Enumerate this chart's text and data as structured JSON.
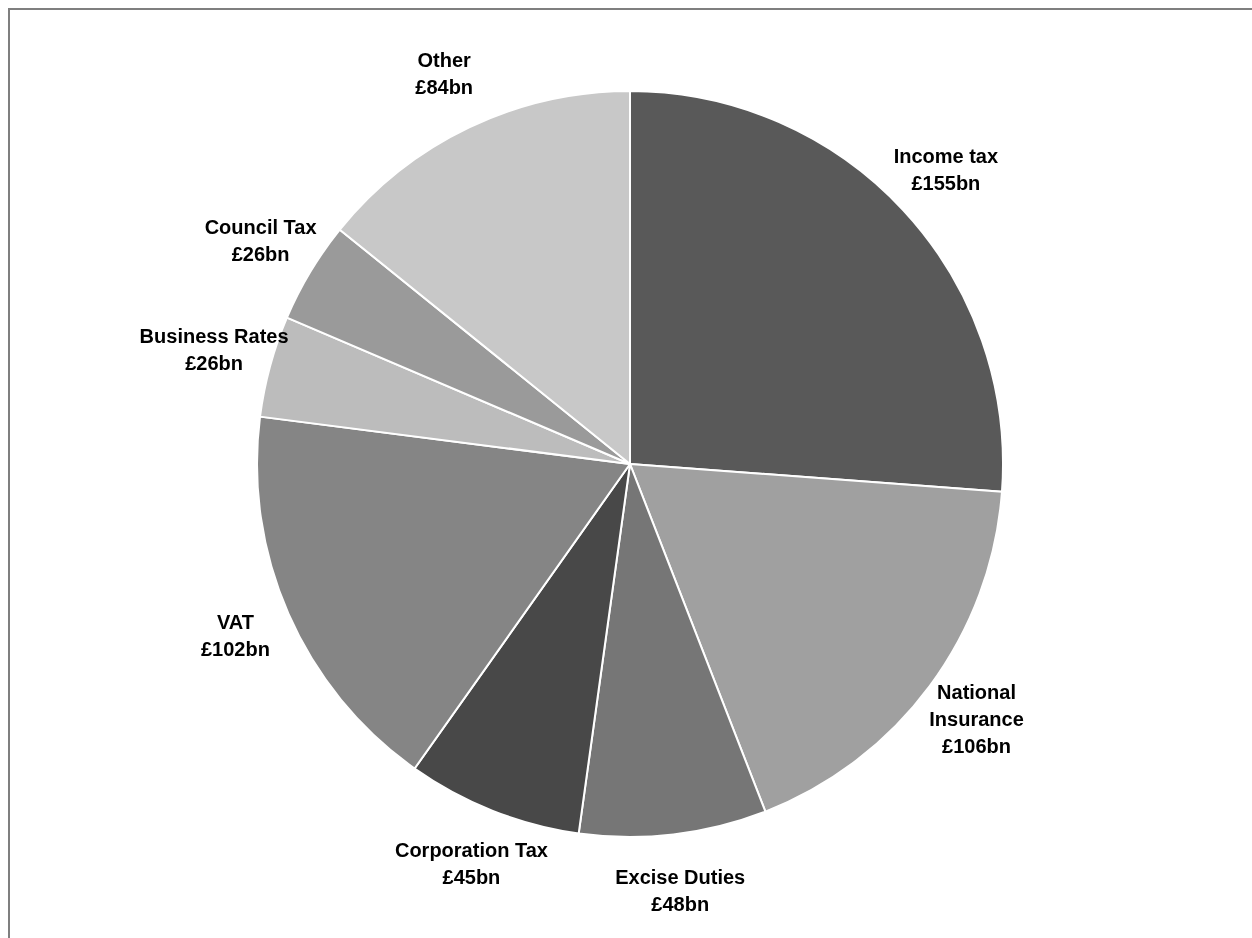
{
  "chart_data": {
    "type": "pie",
    "categories": [
      "Income tax",
      "National Insurance",
      "Excise Duties",
      "Corporation Tax",
      "VAT",
      "Business Rates",
      "Council Tax",
      "Other"
    ],
    "values": [
      155,
      106,
      48,
      45,
      102,
      26,
      26,
      84
    ],
    "value_labels": [
      "£155bn",
      "£106bn",
      "£48bn",
      "£45bn",
      "£102bn",
      "£26bn",
      "£26bn",
      "£84bn"
    ],
    "colors": [
      "#595959",
      "#a0a0a0",
      "#767676",
      "#484848",
      "#858585",
      "#bcbcbc",
      "#9a9a9a",
      "#c8c8c8"
    ],
    "legend": false
  }
}
